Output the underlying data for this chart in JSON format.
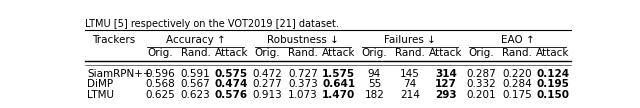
{
  "caption_text": "LTMU [5] respectively on the VOT2019 [21] dataset.",
  "col_groups": [
    {
      "label": "Accuracy ↑",
      "span": 3
    },
    {
      "label": "Robustness ↓",
      "span": 3
    },
    {
      "label": "Failures ↓",
      "span": 3
    },
    {
      "label": "EAO ↑",
      "span": 3
    }
  ],
  "sub_cols": [
    "Orig.",
    "Rand.",
    "Attack"
  ],
  "row_header": "Trackers",
  "rows": [
    {
      "name": "SiamRPN++",
      "values": [
        "0.596",
        "0.591",
        "0.575",
        "0.472",
        "0.727",
        "1.575",
        "94",
        "145",
        "314",
        "0.287",
        "0.220",
        "0.124"
      ],
      "bold": [
        2,
        5,
        8,
        11
      ]
    },
    {
      "name": "DiMP",
      "values": [
        "0.568",
        "0.567",
        "0.474",
        "0.277",
        "0.373",
        "0.641",
        "55",
        "74",
        "127",
        "0.332",
        "0.284",
        "0.195"
      ],
      "bold": [
        2,
        5,
        8,
        11
      ]
    },
    {
      "name": "LTMU",
      "values": [
        "0.625",
        "0.623",
        "0.576",
        "0.913",
        "1.073",
        "1.470",
        "182",
        "214",
        "293",
        "0.201",
        "0.175",
        "0.150"
      ],
      "bold": [
        2,
        5,
        8,
        11
      ]
    }
  ],
  "line_color": "#000000",
  "bg_color": "#ffffff",
  "font_size": 7.5,
  "header_font_size": 7.5
}
